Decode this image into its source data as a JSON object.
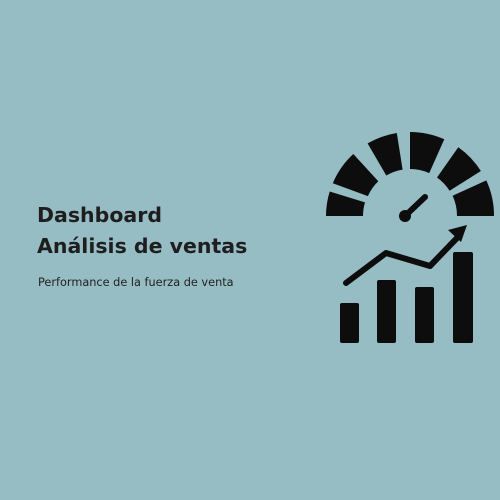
{
  "slide": {
    "title_line1": "Dashboard",
    "title_line2": "Análisis de ventas",
    "subtitle": "Performance de la fuerza de venta"
  },
  "illustration": {
    "icon": "sales-dashboard-gauge-and-growth-chart-icon",
    "fill_color": "#0d0d0d"
  },
  "colors": {
    "background": "#96bcc4",
    "text": "#1e1e1e"
  }
}
